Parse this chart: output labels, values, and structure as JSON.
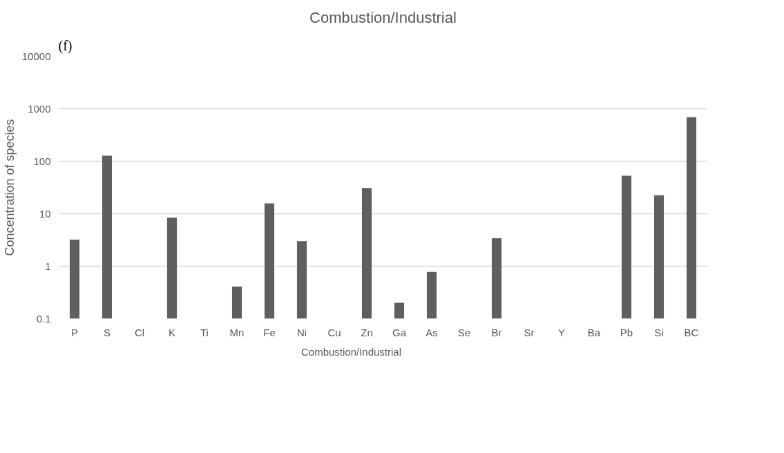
{
  "chart_data": {
    "type": "bar",
    "title": "Combustion/Industrial",
    "ylabel": "Concentration of species",
    "annotations": [
      "(f)"
    ],
    "categories": [
      "P",
      "S",
      "Cl",
      "K",
      "Ti",
      "Mn",
      "Fe",
      "Ni",
      "Cu",
      "Zn",
      "Ga",
      "As",
      "Se",
      "Br",
      "Sr",
      "Y",
      "Ba",
      "Pb",
      "Si",
      "BC"
    ],
    "series": [
      {
        "name": "Combustion/Industrial",
        "color": "#5f5f5f",
        "values": [
          3.2,
          127,
          null,
          8.4,
          null,
          0.41,
          15.7,
          3.0,
          null,
          31,
          0.2,
          0.78,
          null,
          3.4,
          null,
          null,
          null,
          53,
          22.5,
          690
        ]
      }
    ],
    "log": true,
    "ylim": [
      0.1,
      10000
    ],
    "yticks": [
      0.1,
      1,
      10,
      100,
      1000,
      10000
    ],
    "grid": "y",
    "legend": "bottom"
  }
}
